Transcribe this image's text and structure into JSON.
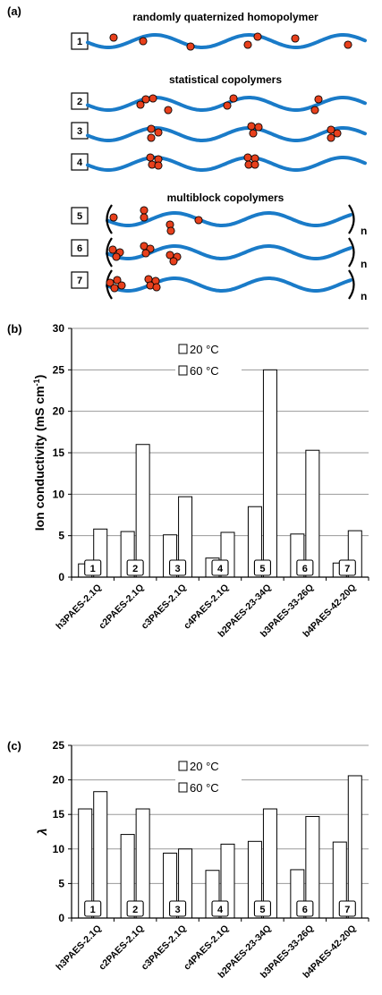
{
  "panel_a": {
    "label": "(a)",
    "titles": [
      "randomly quaternized homopolymer",
      "statistical copolymers",
      "multiblock copolymers"
    ],
    "row_numbers": [
      "1",
      "2",
      "3",
      "4",
      "5",
      "6",
      "7"
    ],
    "repeat_subscript": "n",
    "colors": {
      "chain": "#1a7bc8",
      "cation": "#e8401c"
    }
  },
  "chart_data": [
    {
      "type": "bar",
      "panel_label": "(b)",
      "title": "",
      "xlabel": "",
      "ylabel": "Ion conductivity (mS cm-1)",
      "ylabel_main": "Ion conductivity (mS cm",
      "ylabel_sup": "-1",
      "ylabel_end": ")",
      "ylim": [
        0,
        30
      ],
      "yticks": [
        "0",
        "5",
        "10",
        "15",
        "20",
        "25",
        "30"
      ],
      "grid": true,
      "legend_position": "top-center",
      "categories": [
        "h3PAES-2.1Q",
        "c2PAES-2.1Q",
        "c3PAES-2.1Q",
        "c4PAES-2.1Q",
        "b2PAES-23-34Q",
        "b3PAES-33-26Q",
        "b4PAES-42-20Q"
      ],
      "category_numbers": [
        "1",
        "2",
        "3",
        "4",
        "5",
        "6",
        "7"
      ],
      "series": [
        {
          "name": "20 °C",
          "values": [
            1.6,
            5.5,
            5.1,
            2.3,
            8.5,
            5.2,
            1.7
          ]
        },
        {
          "name": "60 °C",
          "values": [
            5.8,
            16.0,
            9.7,
            5.4,
            25.0,
            15.3,
            5.6
          ]
        }
      ]
    },
    {
      "type": "bar",
      "panel_label": "(c)",
      "title": "",
      "xlabel": "",
      "ylabel": "λ",
      "ylim": [
        0,
        25
      ],
      "yticks": [
        "0",
        "5",
        "10",
        "15",
        "20",
        "25"
      ],
      "grid": true,
      "legend_position": "top-center",
      "categories": [
        "h3PAES-2.1Q",
        "c2PAES-2.1Q",
        "c3PAES-2.1Q",
        "c4PAES-2.1Q",
        "b2PAES-23-34Q",
        "b3PAES-33-26Q",
        "b4PAES-42-20Q"
      ],
      "category_numbers": [
        "1",
        "2",
        "3",
        "4",
        "5",
        "6",
        "7"
      ],
      "series": [
        {
          "name": "20 °C",
          "values": [
            15.8,
            12.1,
            9.4,
            6.9,
            11.1,
            7.0,
            11.0
          ]
        },
        {
          "name": "60 °C",
          "values": [
            18.3,
            15.8,
            10.0,
            10.7,
            15.8,
            14.7,
            20.6
          ]
        }
      ]
    }
  ]
}
